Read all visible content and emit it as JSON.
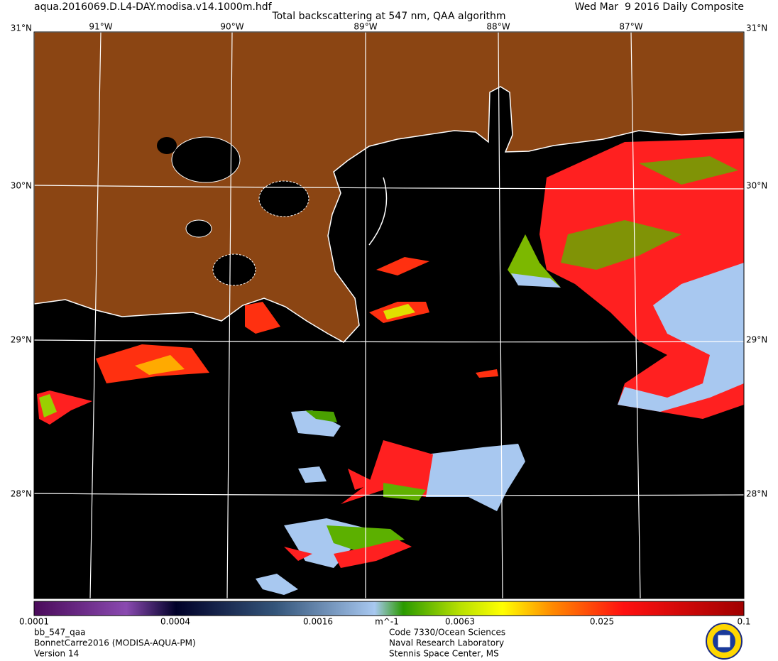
{
  "header": {
    "file": "aqua.2016069.D.L4-DAY.modisa.v14.1000m.hdf",
    "title": "Total backscattering at 547 nm, QAA algorithm",
    "date": "Wed Mar  9 2016 Daily Composite"
  },
  "map": {
    "longitudes": [
      "91°W",
      "90°W",
      "89°W",
      "88°W",
      "87°W"
    ],
    "latitudes": [
      "31°N",
      "30°N",
      "29°N",
      "28°N"
    ]
  },
  "colorbar": {
    "labels": [
      "0.0001",
      "0.0004",
      "0.0016",
      "m^-1",
      "0.0063",
      "0.025",
      "0.1"
    ]
  },
  "footer": {
    "left": [
      "bb_547_qaa",
      "BonnetCarre2016 (MODISA-AQUA-PM)",
      "Version 14"
    ],
    "center": [
      "Code 7330/Ocean Sciences",
      "Naval Research Laboratory",
      "Stennis Space Center, MS"
    ]
  }
}
